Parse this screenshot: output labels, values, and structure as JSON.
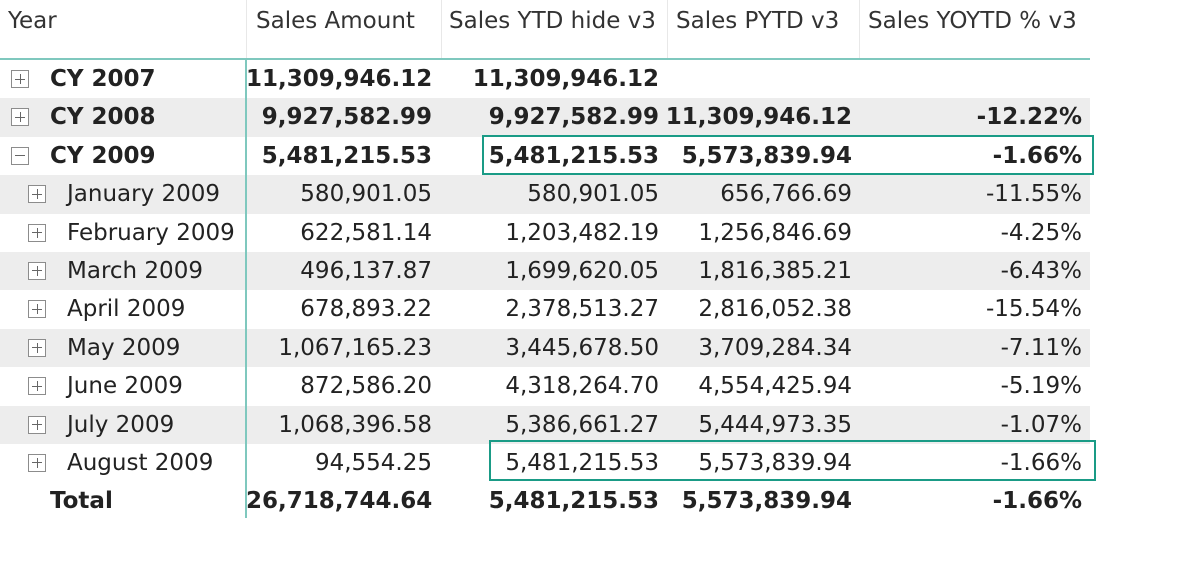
{
  "headers": {
    "year": "Year",
    "sales_amount": "Sales Amount",
    "sales_ytd": "Sales YTD hide v3",
    "sales_pytd": "Sales PYTD v3",
    "sales_yoytd": "Sales YOYTD % v3"
  },
  "rows": [
    {
      "label": "CY 2007",
      "amount": "11,309,946.12",
      "ytd": "11,309,946.12",
      "pytd": "",
      "yoytd": ""
    },
    {
      "label": "CY 2008",
      "amount": "9,927,582.99",
      "ytd": "9,927,582.99",
      "pytd": "11,309,946.12",
      "yoytd": "-12.22%"
    },
    {
      "label": "CY 2009",
      "amount": "5,481,215.53",
      "ytd": "5,481,215.53",
      "pytd": "5,573,839.94",
      "yoytd": "-1.66%"
    },
    {
      "label": "January 2009",
      "amount": "580,901.05",
      "ytd": "580,901.05",
      "pytd": "656,766.69",
      "yoytd": "-11.55%"
    },
    {
      "label": "February 2009",
      "amount": "622,581.14",
      "ytd": "1,203,482.19",
      "pytd": "1,256,846.69",
      "yoytd": "-4.25%"
    },
    {
      "label": "March 2009",
      "amount": "496,137.87",
      "ytd": "1,699,620.05",
      "pytd": "1,816,385.21",
      "yoytd": "-6.43%"
    },
    {
      "label": "April 2009",
      "amount": "678,893.22",
      "ytd": "2,378,513.27",
      "pytd": "2,816,052.38",
      "yoytd": "-15.54%"
    },
    {
      "label": "May 2009",
      "amount": "1,067,165.23",
      "ytd": "3,445,678.50",
      "pytd": "3,709,284.34",
      "yoytd": "-7.11%"
    },
    {
      "label": "June 2009",
      "amount": "872,586.20",
      "ytd": "4,318,264.70",
      "pytd": "4,554,425.94",
      "yoytd": "-5.19%"
    },
    {
      "label": "July 2009",
      "amount": "1,068,396.58",
      "ytd": "5,386,661.27",
      "pytd": "5,444,973.35",
      "yoytd": "-1.07%"
    },
    {
      "label": "August 2009",
      "amount": "94,554.25",
      "ytd": "5,481,215.53",
      "pytd": "5,573,839.94",
      "yoytd": "-1.66%"
    }
  ],
  "total": {
    "label": "Total",
    "amount": "26,718,744.64",
    "ytd": "5,481,215.53",
    "pytd": "5,573,839.94",
    "yoytd": "-1.66%"
  },
  "colors": {
    "accent": "#7fc8be",
    "highlight": "#1a9b86",
    "row_shade": "#ededed"
  }
}
